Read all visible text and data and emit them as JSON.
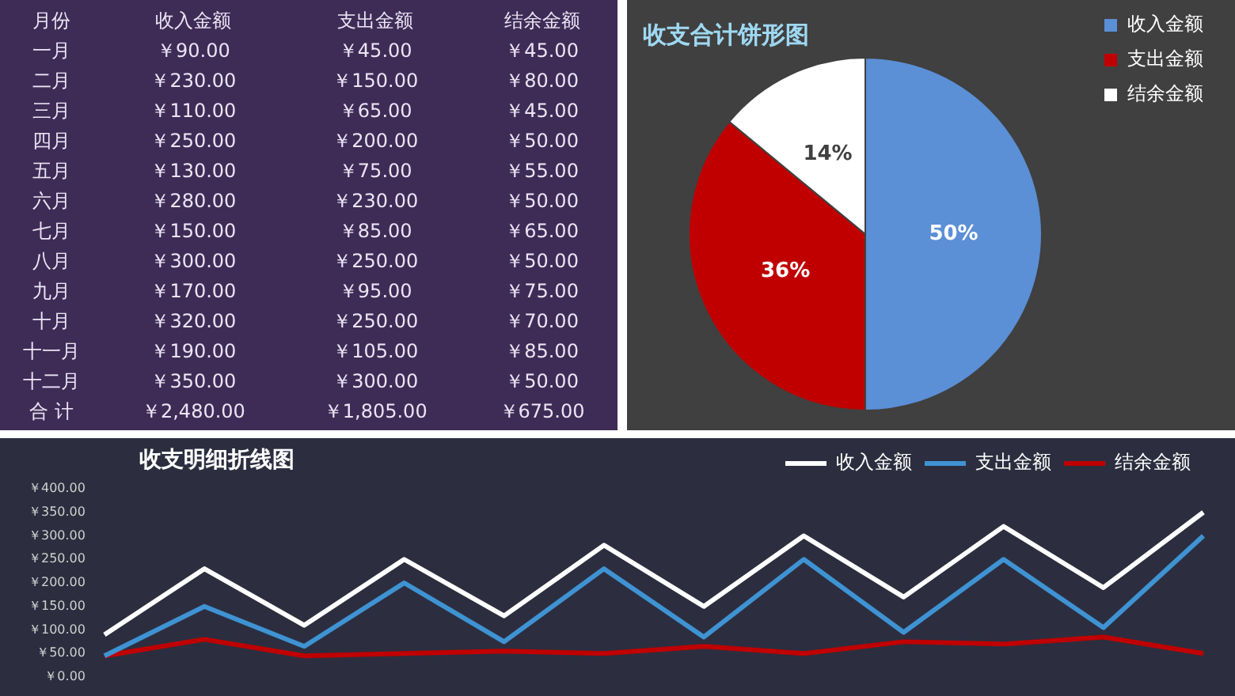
{
  "chart_data": [
    {
      "type": "other",
      "ylabel": "月份",
      "categories": [
        "一月",
        "二月",
        "三月",
        "四月",
        "五月",
        "六月",
        "七月",
        "八月",
        "九月",
        "十月",
        "十一月",
        "十二月",
        "合 计"
      ],
      "series": [
        {
          "name": "收入金额",
          "values": [
            90,
            230,
            110,
            250,
            130,
            280,
            150,
            300,
            170,
            320,
            190,
            350,
            2480
          ],
          "value_labels": [
            "￥90.00",
            "￥230.00",
            "￥110.00",
            "￥250.00",
            "￥130.00",
            "￥280.00",
            "￥150.00",
            "￥300.00",
            "￥170.00",
            "￥320.00",
            "￥190.00",
            "￥350.00",
            "￥2,480.00"
          ]
        },
        {
          "name": "支出金额",
          "values": [
            45,
            150,
            65,
            200,
            75,
            230,
            85,
            250,
            95,
            250,
            105,
            300,
            1805
          ],
          "value_labels": [
            "￥45.00",
            "￥150.00",
            "￥65.00",
            "￥200.00",
            "￥75.00",
            "￥230.00",
            "￥85.00",
            "￥250.00",
            "￥95.00",
            "￥250.00",
            "￥105.00",
            "￥300.00",
            "￥1,805.00"
          ]
        },
        {
          "name": "结余金额",
          "values": [
            45,
            80,
            45,
            50,
            55,
            50,
            65,
            50,
            75,
            70,
            85,
            50,
            675
          ],
          "value_labels": [
            "￥45.00",
            "￥80.00",
            "￥45.00",
            "￥50.00",
            "￥55.00",
            "￥50.00",
            "￥65.00",
            "￥50.00",
            "￥75.00",
            "￥70.00",
            "￥85.00",
            "￥50.00",
            "￥675.00"
          ]
        }
      ]
    },
    {
      "type": "pie",
      "title": "收支合计饼形图",
      "categories": [
        "收入金额",
        "支出金额",
        "结余金额"
      ],
      "values": [
        50,
        36,
        14
      ],
      "colors": [
        "#5b8fd6",
        "#c00000",
        "#ffffff"
      ],
      "value_labels": [
        "50%",
        "36%",
        "14%"
      ],
      "legend": "right"
    },
    {
      "type": "line",
      "title": "收支明细折线图",
      "categories": [
        null,
        null,
        null,
        null,
        null,
        null,
        null,
        null,
        null,
        null,
        null,
        null
      ],
      "series": [
        {
          "name": "收入金额",
          "color": "#ffffff",
          "values": [
            90,
            230,
            110,
            250,
            130,
            280,
            150,
            300,
            170,
            320,
            190,
            350
          ]
        },
        {
          "name": "支出金额",
          "color": "#3f93d3",
          "values": [
            45,
            150,
            65,
            200,
            75,
            230,
            85,
            250,
            95,
            250,
            105,
            300
          ]
        },
        {
          "name": "结余金额",
          "color": "#c00000",
          "values": [
            45,
            80,
            45,
            50,
            55,
            50,
            65,
            50,
            75,
            70,
            85,
            50
          ]
        }
      ],
      "ylim": [
        0,
        400
      ],
      "yticks": [
        {
          "value": 0,
          "label": "￥0.00"
        },
        {
          "value": 50,
          "label": "￥50.00"
        },
        {
          "value": 100,
          "label": "￥100.00"
        },
        {
          "value": 150,
          "label": "￥150.00"
        },
        {
          "value": 200,
          "label": "￥200.00"
        },
        {
          "value": 250,
          "label": "￥250.00"
        },
        {
          "value": 300,
          "label": "￥300.00"
        },
        {
          "value": 350,
          "label": "￥350.00"
        },
        {
          "value": 400,
          "label": "￥400.00"
        }
      ],
      "tick_labels": "y",
      "grid": false,
      "legend": "top right",
      "marker": "none",
      "line_style": "solid"
    }
  ]
}
